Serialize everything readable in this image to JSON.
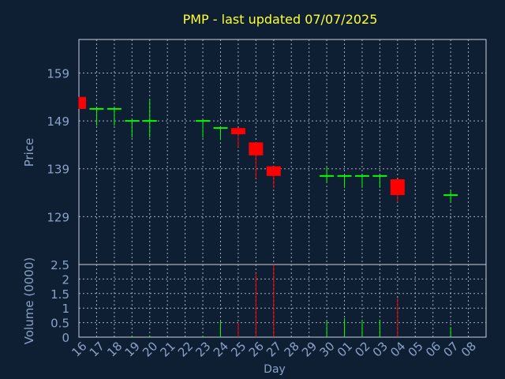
{
  "chart_data": {
    "type": "candlestick",
    "title": "PMP - last updated 07/07/2025",
    "xlabel": "Day",
    "price_ylabel": "Price",
    "volume_ylabel": "Volume (0000)",
    "price_yticks": [
      129,
      139,
      149,
      159
    ],
    "price_ylim": [
      119,
      166
    ],
    "volume_yticks": [
      0,
      0.5,
      1,
      1.5,
      2,
      2.5
    ],
    "volume_ylim": [
      0,
      2.5
    ],
    "x_tick_labels": [
      "16",
      "17",
      "18",
      "19",
      "20",
      "21",
      "22",
      "23",
      "24",
      "25",
      "26",
      "27",
      "28",
      "29",
      "30",
      "01",
      "02",
      "03",
      "04",
      "05",
      "06",
      "07",
      "08"
    ],
    "up_color": "#00ff00",
    "down_color": "#ff0000",
    "candles": [
      {
        "day": "16",
        "open": 154.0,
        "high": 154.0,
        "low": 151.5,
        "close": 151.5,
        "volume": 0.0
      },
      {
        "day": "17",
        "open": 151.5,
        "high": 151.5,
        "low": 148.0,
        "close": 151.5,
        "volume": 0.0
      },
      {
        "day": "18",
        "open": 151.5,
        "high": 151.5,
        "low": 148.0,
        "close": 151.5,
        "volume": 0.0
      },
      {
        "day": "19",
        "open": 149.0,
        "high": 149.0,
        "low": 145.5,
        "close": 149.0,
        "volume": 0.05
      },
      {
        "day": "20",
        "open": 149.0,
        "high": 153.5,
        "low": 145.5,
        "close": 149.0,
        "volume": 0.05
      },
      {
        "day": "23",
        "open": 149.0,
        "high": 149.0,
        "low": 145.5,
        "close": 149.0,
        "volume": 0.05
      },
      {
        "day": "24",
        "open": 147.5,
        "high": 147.5,
        "low": 145.0,
        "close": 147.5,
        "volume": 0.55
      },
      {
        "day": "25",
        "open": 147.5,
        "high": 147.5,
        "low": 143.5,
        "close": 146.2,
        "volume": 0.5
      },
      {
        "day": "26",
        "open": 144.5,
        "high": 144.5,
        "low": 137.0,
        "close": 141.8,
        "volume": 2.2
      },
      {
        "day": "27",
        "open": 139.5,
        "high": 139.5,
        "low": 135.0,
        "close": 137.5,
        "volume": 2.5
      },
      {
        "day": "30",
        "open": 137.5,
        "high": 139.5,
        "low": 136.0,
        "close": 137.5,
        "volume": 0.55
      },
      {
        "day": "01",
        "open": 137.5,
        "high": 137.5,
        "low": 135.0,
        "close": 137.5,
        "volume": 0.65
      },
      {
        "day": "02",
        "open": 137.5,
        "high": 137.5,
        "low": 135.0,
        "close": 137.5,
        "volume": 0.6
      },
      {
        "day": "03",
        "open": 137.5,
        "high": 137.5,
        "low": 135.0,
        "close": 137.5,
        "volume": 0.6
      },
      {
        "day": "04",
        "open": 136.8,
        "high": 136.8,
        "low": 132.0,
        "close": 133.5,
        "volume": 1.35
      },
      {
        "day": "07",
        "open": 133.5,
        "high": 134.5,
        "low": 132.0,
        "close": 133.5,
        "volume": 0.35
      }
    ],
    "grid": true
  }
}
